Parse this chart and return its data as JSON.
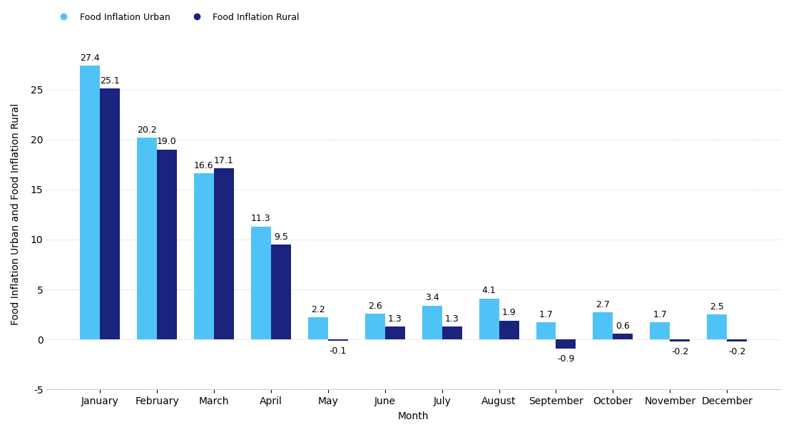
{
  "months": [
    "January",
    "February",
    "March",
    "April",
    "May",
    "June",
    "July",
    "August",
    "September",
    "October",
    "November",
    "December"
  ],
  "urban": [
    27.4,
    20.2,
    16.6,
    11.3,
    2.2,
    2.6,
    3.4,
    4.1,
    1.7,
    2.7,
    1.7,
    2.5
  ],
  "rural": [
    25.1,
    19.0,
    17.1,
    9.5,
    -0.1,
    1.3,
    1.3,
    1.9,
    -0.9,
    0.6,
    -0.2,
    -0.2
  ],
  "urban_color": "#4FC3F7",
  "rural_color": "#1A237E",
  "ylabel": "Food Inflation Urban and Food Inflation Rural",
  "xlabel": "Month",
  "legend_urban": "Food Inflation Urban",
  "legend_rural": "Food Inflation Rural",
  "ylim": [
    -5,
    30
  ],
  "yticks": [
    -5,
    0,
    5,
    10,
    15,
    20,
    25
  ],
  "bar_width": 0.35,
  "background_color": "#FFFFFF",
  "grid_color": "#CCCCCC",
  "label_fontsize": 9,
  "axis_fontsize": 10
}
